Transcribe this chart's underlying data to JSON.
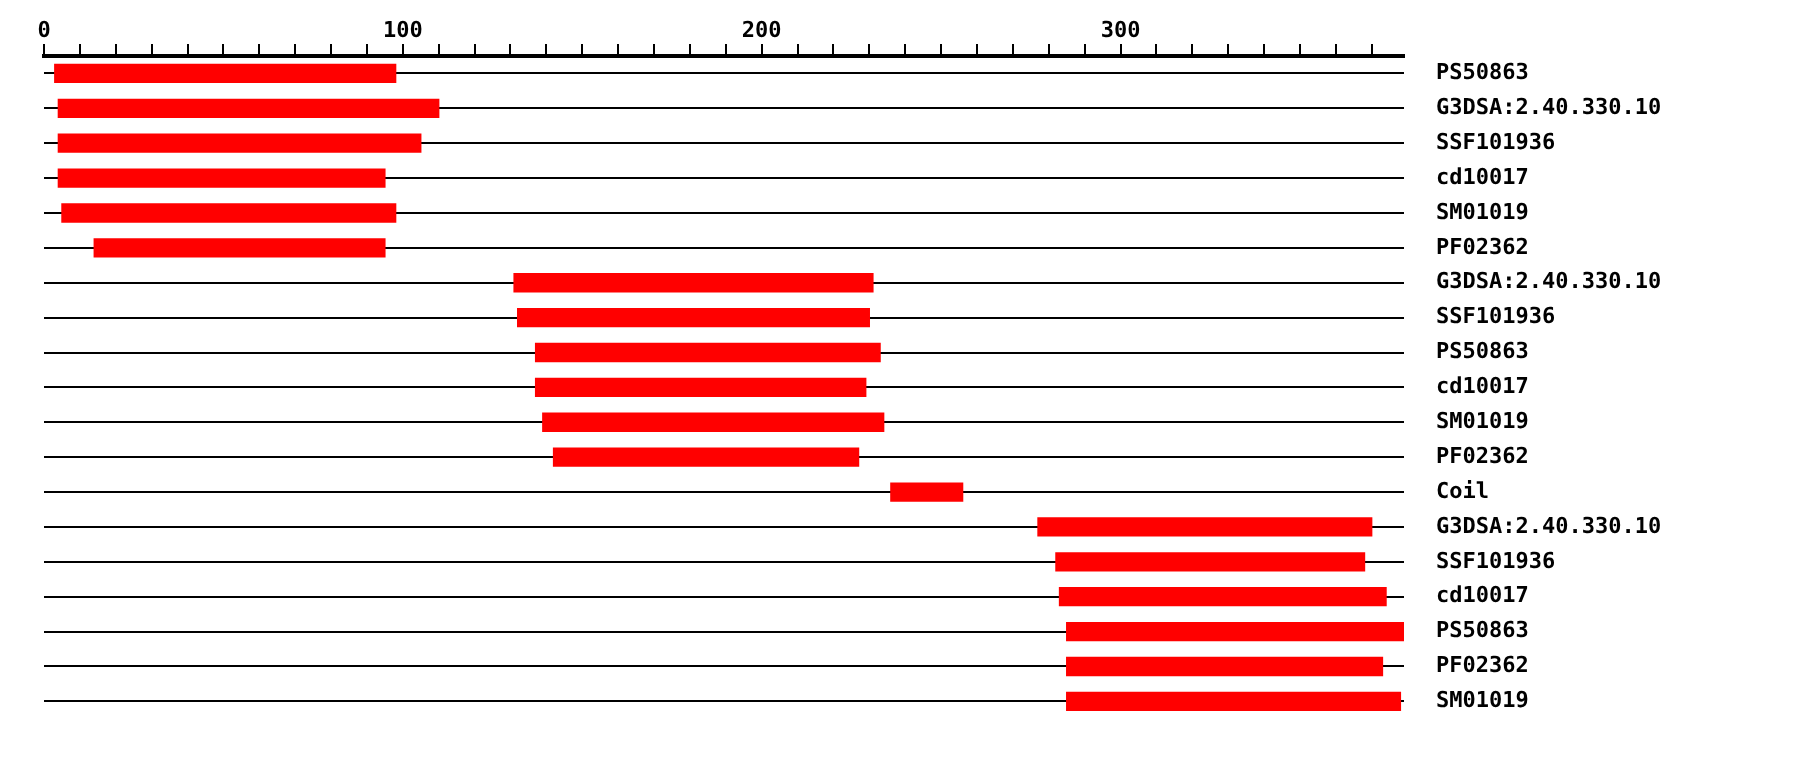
{
  "chart_data": {
    "type": "bar",
    "orientation": "horizontal",
    "grid": "y",
    "categories": [
      "PS50863",
      "G3DSA:2.40.330.10",
      "SSF101936",
      "cd10017",
      "SM01019",
      "PF02362",
      "G3DSA:2.40.330.10",
      "SSF101936",
      "PS50863",
      "cd10017",
      "SM01019",
      "PF02362",
      "Coil",
      "G3DSA:2.40.330.10",
      "SSF101936",
      "cd10017",
      "PS50863",
      "PF02362",
      "SM01019"
    ],
    "base": [
      3,
      4,
      4,
      4,
      5,
      14,
      131,
      132,
      137,
      137,
      139,
      142,
      236,
      277,
      282,
      283,
      285,
      285,
      285
    ],
    "values": [
      95,
      106,
      101,
      91,
      93,
      81,
      100,
      98,
      96,
      92,
      95,
      85,
      20,
      93,
      86,
      91,
      94,
      88,
      93
    ],
    "color": "#ff0000",
    "xlim": [
      0,
      379
    ],
    "xticks": [
      0,
      {
        "value": 10,
        "label": null
      },
      {
        "value": 20,
        "label": null
      },
      {
        "value": 30,
        "label": null
      },
      {
        "value": 40,
        "label": null
      },
      {
        "value": 50,
        "label": null
      },
      {
        "value": 60,
        "label": null
      },
      {
        "value": 70,
        "label": null
      },
      {
        "value": 80,
        "label": null
      },
      {
        "value": 90,
        "label": null
      },
      100,
      {
        "value": 110,
        "label": null
      },
      {
        "value": 120,
        "label": null
      },
      {
        "value": 130,
        "label": null
      },
      {
        "value": 140,
        "label": null
      },
      {
        "value": 150,
        "label": null
      },
      {
        "value": 160,
        "label": null
      },
      {
        "value": 170,
        "label": null
      },
      {
        "value": 180,
        "label": null
      },
      {
        "value": 190,
        "label": null
      },
      200,
      {
        "value": 210,
        "label": null
      },
      {
        "value": 220,
        "label": null
      },
      {
        "value": 230,
        "label": null
      },
      {
        "value": 240,
        "label": null
      },
      {
        "value": 250,
        "label": null
      },
      {
        "value": 260,
        "label": null
      },
      {
        "value": 270,
        "label": null
      },
      {
        "value": 280,
        "label": null
      },
      {
        "value": 290,
        "label": null
      },
      300,
      {
        "value": 310,
        "label": null
      },
      {
        "value": 320,
        "label": null
      },
      {
        "value": 330,
        "label": null
      },
      {
        "value": 340,
        "label": null
      },
      {
        "value": 350,
        "label": null
      },
      {
        "value": 360,
        "label": null
      },
      {
        "value": 370,
        "label": null
      }
    ],
    "legend": false
  }
}
